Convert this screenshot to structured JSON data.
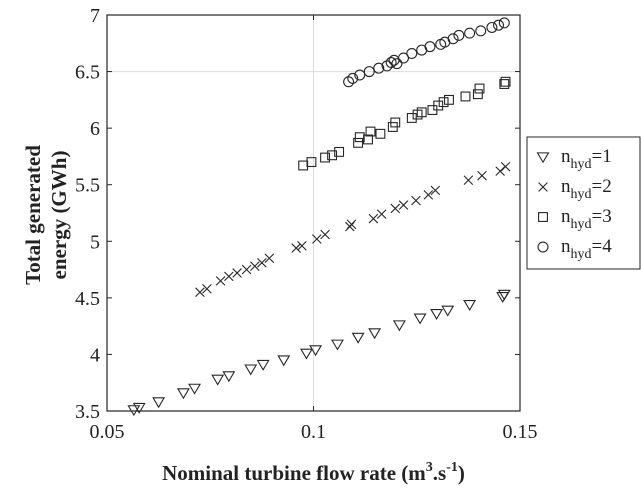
{
  "chart_data": {
    "type": "scatter",
    "xlabel": {
      "main": "Nominal turbine flow rate (m",
      "sup1": "3",
      "mid": ".s",
      "sup2": "-1",
      "end": ")"
    },
    "ylabel": {
      "line1": "Total generated",
      "line2": "energy (GWh)"
    },
    "xlim": [
      0.05,
      0.15
    ],
    "ylim": [
      3.5,
      7
    ],
    "xticks": [
      0.05,
      0.1,
      0.15
    ],
    "xtick_labels": [
      "0.05",
      "0.1",
      "0.15"
    ],
    "yticks": [
      3.5,
      4,
      4.5,
      5,
      5.5,
      6,
      6.5,
      7
    ],
    "ytick_labels": [
      "3.5",
      "4",
      "4.5",
      "5",
      "5.5",
      "6",
      "6.5",
      "7"
    ],
    "grid": "major gridlines at x=0.1 and y=6.5 visible",
    "legend_position": "outside-right",
    "series": [
      {
        "name": "n_hyd=1",
        "label_main": "n",
        "label_sub": "hyd",
        "label_rest": "=1",
        "marker": "triangle-down",
        "x": [
          0.0565,
          0.0578,
          0.0625,
          0.0685,
          0.0712,
          0.0768,
          0.0795,
          0.0848,
          0.0878,
          0.0928,
          0.0983,
          0.1005,
          0.1058,
          0.1108,
          0.1148,
          0.1208,
          0.1258,
          0.1298,
          0.1325,
          0.1378,
          0.1458,
          0.1462
        ],
        "y": [
          3.51,
          3.53,
          3.58,
          3.66,
          3.7,
          3.78,
          3.81,
          3.87,
          3.91,
          3.95,
          4.01,
          4.04,
          4.09,
          4.15,
          4.19,
          4.26,
          4.32,
          4.36,
          4.39,
          4.44,
          4.51,
          4.53
        ]
      },
      {
        "name": "n_hyd=2",
        "label_main": "n",
        "label_sub": "hyd",
        "label_rest": "=2",
        "marker": "x",
        "x": [
          0.0725,
          0.0742,
          0.0775,
          0.0795,
          0.0815,
          0.0838,
          0.0858,
          0.0875,
          0.0893,
          0.0958,
          0.0972,
          0.1008,
          0.1028,
          0.1088,
          0.1092,
          0.1145,
          0.1165,
          0.1198,
          0.1218,
          0.1248,
          0.1278,
          0.1295,
          0.1375,
          0.1408,
          0.1452,
          0.1465
        ],
        "y": [
          4.55,
          4.58,
          4.65,
          4.69,
          4.72,
          4.75,
          4.78,
          4.81,
          4.85,
          4.94,
          4.96,
          5.02,
          5.06,
          5.13,
          5.15,
          5.2,
          5.24,
          5.29,
          5.32,
          5.36,
          5.41,
          5.45,
          5.54,
          5.58,
          5.62,
          5.66
        ]
      },
      {
        "name": "n_hyd=3",
        "label_main": "n",
        "label_sub": "hyd",
        "label_rest": "=3",
        "marker": "square",
        "x": [
          0.0975,
          0.0995,
          0.1028,
          0.1045,
          0.1062,
          0.1108,
          0.1112,
          0.1132,
          0.1138,
          0.1162,
          0.1192,
          0.1198,
          0.1238,
          0.1252,
          0.1262,
          0.1288,
          0.1302,
          0.1315,
          0.1328,
          0.1368,
          0.1398,
          0.1402,
          0.1462,
          0.1465
        ],
        "y": [
          5.67,
          5.7,
          5.74,
          5.76,
          5.79,
          5.87,
          5.92,
          5.9,
          5.97,
          5.95,
          6.01,
          6.05,
          6.09,
          6.12,
          6.14,
          6.16,
          6.2,
          6.23,
          6.25,
          6.28,
          6.3,
          6.35,
          6.39,
          6.41
        ]
      },
      {
        "name": "n_hyd=4",
        "label_main": "n",
        "label_sub": "hyd",
        "label_rest": "=4",
        "marker": "circle",
        "x": [
          0.1085,
          0.1095,
          0.1112,
          0.1135,
          0.1158,
          0.1178,
          0.1188,
          0.1195,
          0.1202,
          0.1218,
          0.1238,
          0.1262,
          0.1282,
          0.1308,
          0.1318,
          0.1338,
          0.1352,
          0.1378,
          0.1405,
          0.1432,
          0.1448,
          0.1462
        ],
        "y": [
          6.41,
          6.44,
          6.47,
          6.5,
          6.53,
          6.55,
          6.58,
          6.6,
          6.57,
          6.62,
          6.66,
          6.69,
          6.72,
          6.74,
          6.76,
          6.79,
          6.82,
          6.84,
          6.86,
          6.89,
          6.91,
          6.93
        ]
      }
    ]
  }
}
